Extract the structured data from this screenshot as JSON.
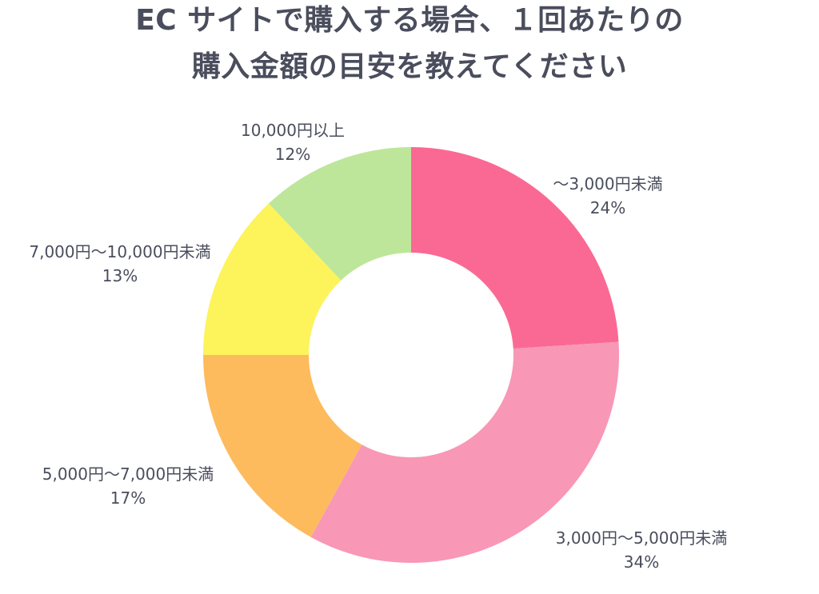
{
  "chart_data": {
    "type": "pie",
    "donut": true,
    "title_lines": [
      "EC サイトで購入する場合、１回あたりの",
      "購入金額の目安を教えてください"
    ],
    "categories": [
      "～3,000円未満",
      "3,000円～5,000円未満",
      "5,000円～7,000円未満",
      "7,000円～10,000円未満",
      "10,000円以上"
    ],
    "values": [
      24,
      34,
      17,
      13,
      12
    ],
    "value_labels": [
      "24%",
      "34%",
      "17%",
      "13%",
      "12%"
    ],
    "colors": [
      "#fa6994",
      "#f897b6",
      "#fdbb5d",
      "#fdf35b",
      "#bde69a"
    ],
    "start": "12 o'clock",
    "direction": "clockwise",
    "legend": "none"
  }
}
